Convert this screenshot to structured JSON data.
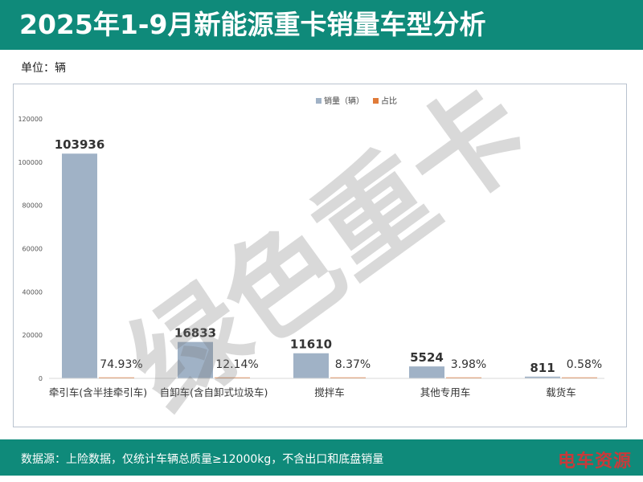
{
  "header": {
    "title": "2025年1-9月新能源重卡销量车型分析"
  },
  "unit_label": "单位：辆",
  "chart_data": {
    "type": "bar",
    "categories": [
      "牵引车(含半挂牵引车)",
      "自卸车(含自卸式垃圾车)",
      "搅拌车",
      "其他专用车",
      "载货车"
    ],
    "series": [
      {
        "name": "销量（辆）",
        "values": [
          103936,
          16833,
          11610,
          5524,
          811
        ],
        "color": "#a0b2c6"
      },
      {
        "name": "占比",
        "values": [
          74.93,
          12.14,
          8.37,
          3.98,
          0.58
        ],
        "color": "#e07b39",
        "unit": "%"
      }
    ],
    "value_labels": [
      "103936",
      "16833",
      "11610",
      "5524",
      "811"
    ],
    "share_labels": [
      "74.93%",
      "12.14%",
      "8.37%",
      "3.98%",
      "0.58%"
    ],
    "y_ticks": [
      0,
      20000,
      40000,
      60000,
      80000,
      100000,
      120000
    ],
    "ylim": [
      0,
      120000
    ],
    "legend_position": "top-center",
    "grid": false
  },
  "watermark": "绿色重卡",
  "footer": {
    "source": "数据源：上险数据，仅统计车辆总质量≥12000kg，不含出口和底盘销量",
    "brand": "电车资源"
  },
  "colors": {
    "header_bg": "#0f8a7a",
    "bar": "#a0b2c6",
    "share": "#e07b39"
  }
}
